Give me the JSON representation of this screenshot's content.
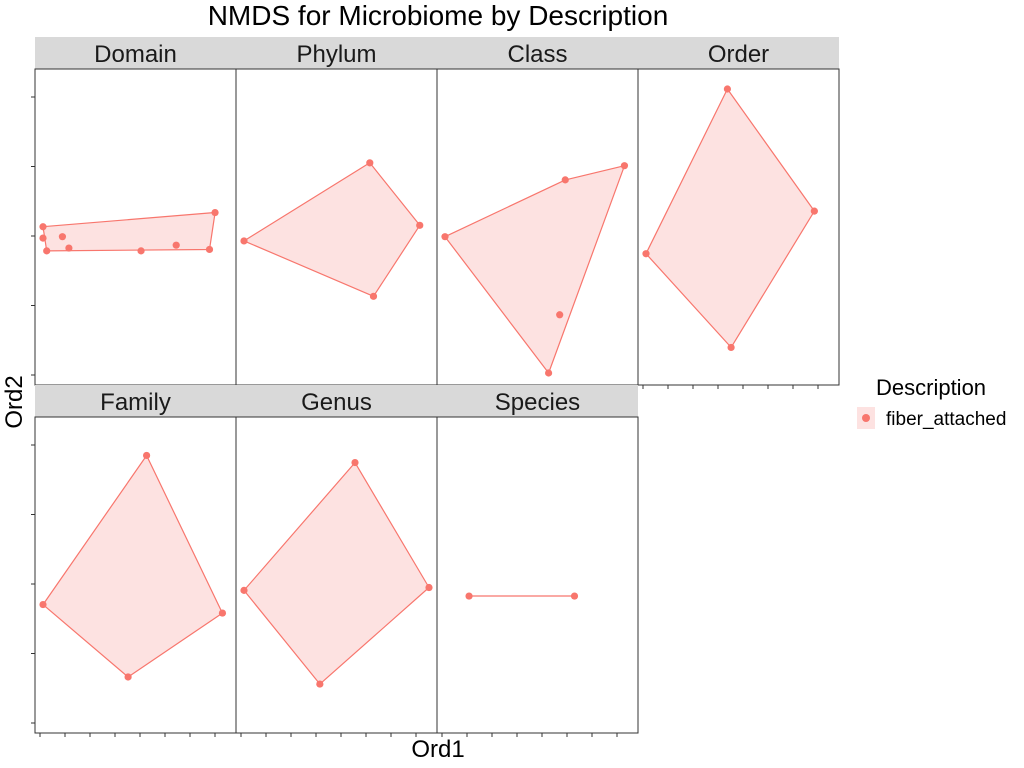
{
  "chart_data": {
    "type": "scatter",
    "title": "NMDS for Microbiome by Description",
    "xlabel": "Ord1",
    "ylabel": "Ord2",
    "legend": {
      "title": "Description",
      "position": "right",
      "entries": [
        "fiber_attached"
      ]
    },
    "colors": {
      "point": "#F8766D",
      "hull_fill": "#FDE2E1",
      "strip_bg": "#D9D9D9",
      "panel_border": "#333333"
    },
    "facets": [
      {
        "name": "Domain",
        "hull": [
          [
            0.0,
            0.515
          ],
          [
            0.93,
            0.565
          ],
          [
            0.9,
            0.435
          ],
          [
            0.02,
            0.43
          ]
        ],
        "points": [
          [
            0.0,
            0.515
          ],
          [
            0.0,
            0.475
          ],
          [
            0.105,
            0.48
          ],
          [
            0.02,
            0.43
          ],
          [
            0.14,
            0.44
          ],
          [
            0.53,
            0.43
          ],
          [
            0.72,
            0.45
          ],
          [
            0.9,
            0.435
          ],
          [
            0.93,
            0.565
          ]
        ]
      },
      {
        "name": "Phylum",
        "hull": [
          [
            0.0,
            0.465
          ],
          [
            0.68,
            0.74
          ],
          [
            0.95,
            0.52
          ],
          [
            0.7,
            0.27
          ]
        ],
        "points": [
          [
            0.0,
            0.465
          ],
          [
            0.68,
            0.74
          ],
          [
            0.95,
            0.52
          ],
          [
            0.7,
            0.27
          ]
        ]
      },
      {
        "name": "Class",
        "hull": [
          [
            0.0,
            0.48
          ],
          [
            0.65,
            0.68
          ],
          [
            0.97,
            0.73
          ],
          [
            0.56,
            0.0
          ]
        ],
        "points": [
          [
            0.0,
            0.48
          ],
          [
            0.65,
            0.68
          ],
          [
            0.97,
            0.73
          ],
          [
            0.62,
            0.205
          ],
          [
            0.56,
            0.0
          ]
        ]
      },
      {
        "name": "Order",
        "hull": [
          [
            0.0,
            0.42
          ],
          [
            0.44,
            1.0
          ],
          [
            0.91,
            0.57
          ],
          [
            0.46,
            0.09
          ]
        ],
        "points": [
          [
            0.0,
            0.42
          ],
          [
            0.44,
            1.0
          ],
          [
            0.91,
            0.57
          ],
          [
            0.46,
            0.09
          ]
        ]
      },
      {
        "name": "Family",
        "hull": [
          [
            0.0,
            0.41
          ],
          [
            0.56,
            0.935
          ],
          [
            0.97,
            0.38
          ],
          [
            0.46,
            0.155
          ]
        ],
        "points": [
          [
            0.0,
            0.41
          ],
          [
            0.56,
            0.935
          ],
          [
            0.97,
            0.38
          ],
          [
            0.46,
            0.155
          ]
        ]
      },
      {
        "name": "Genus",
        "hull": [
          [
            0.0,
            0.46
          ],
          [
            0.6,
            0.91
          ],
          [
            1.0,
            0.47
          ],
          [
            0.41,
            0.13
          ]
        ],
        "points": [
          [
            0.0,
            0.46
          ],
          [
            0.6,
            0.91
          ],
          [
            1.0,
            0.47
          ],
          [
            0.41,
            0.13
          ]
        ]
      },
      {
        "name": "Species",
        "hull": [
          [
            0.13,
            0.44
          ],
          [
            0.7,
            0.44
          ]
        ],
        "points": [
          [
            0.13,
            0.44
          ],
          [
            0.7,
            0.44
          ]
        ]
      }
    ],
    "grid": false,
    "tick_labels": false,
    "layout": "facet_wrap ncol=4"
  }
}
